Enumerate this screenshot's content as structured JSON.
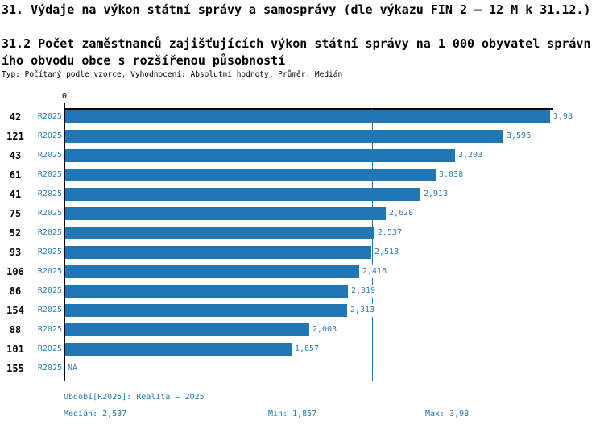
{
  "header": {
    "title": "31. Výdaje na výkon státní správy a samosprávy (dle výkazu FIN 2 – 12 M k 31.12.)",
    "subtitle_line1": "31.2 Počet zaměstnanců zajišťujících výkon státní správy na 1 000 obyvatel správn",
    "subtitle_line2": "ího obvodu obce s rozšířenou působností",
    "meta_line": "Typ: Počítaný podle vzorce, Vyhodnocení: Absolutní hodnoty, Průměr: Medián"
  },
  "chart_data": {
    "type": "bar",
    "orientation": "horizontal",
    "title": "31.2 Počet zaměstnanců zajišťujících výkon státní správy na 1 000 obyvatel správního obvodu obce s rozšířenou působností",
    "xlabel": "",
    "ylabel": "",
    "xlim": [
      0,
      4.02
    ],
    "x_zero_tick_label": "0",
    "grid": false,
    "period_label": "R2025",
    "categories": [
      "42",
      "121",
      "43",
      "61",
      "41",
      "75",
      "52",
      "93",
      "106",
      "86",
      "154",
      "88",
      "101",
      "155"
    ],
    "values": [
      3.98,
      3.596,
      3.203,
      3.038,
      2.913,
      2.628,
      2.537,
      2.513,
      2.416,
      2.319,
      2.313,
      2.003,
      1.857,
      null
    ],
    "value_labels": [
      "3,98",
      "3,596",
      "3,203",
      "3,038",
      "2,913",
      "2,628",
      "2,537",
      "2,513",
      "2,416",
      "2,319",
      "2,313",
      "2,003",
      "1,857",
      "NA"
    ],
    "median_value": 2.537,
    "bar_color": "#2077b4",
    "median_line_color": "#2077b4",
    "label_color": "#2e7fb8",
    "axis_color": "#000000"
  },
  "footer": {
    "period_line": "Období[R2025]: Realita – 2025",
    "median_label": "Medián: 2,537",
    "min_label": "Min: 1,857",
    "max_label": "Max: 3,98",
    "text_color": "#2077b4"
  }
}
